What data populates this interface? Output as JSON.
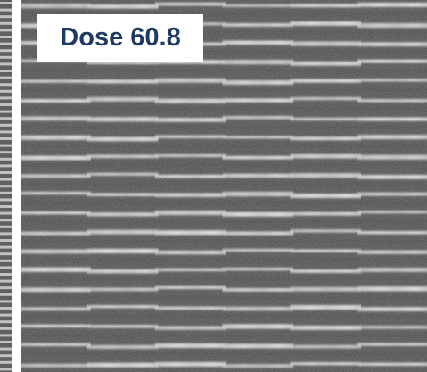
{
  "label": {
    "text": "Dose 60.8"
  },
  "colors": {
    "background": "#4a4a4a",
    "line_bright": "#e6e6e6",
    "label_text": "#1f3a63",
    "label_bg": "#ffffff"
  }
}
